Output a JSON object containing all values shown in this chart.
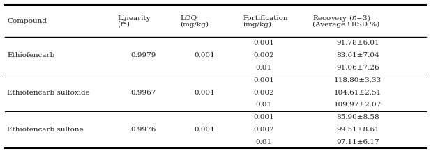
{
  "compounds": [
    {
      "name": "Ethiofencarb",
      "linearity": "0.9979",
      "loq": "0.001",
      "fortifications": [
        "0.001",
        "0.002",
        "0.01"
      ],
      "recoveries": [
        "91.78±6.01",
        "83.61±7.04",
        "91.06±7.26"
      ]
    },
    {
      "name": "Ethiofencarb sulfoxide",
      "linearity": "0.9967",
      "loq": "0.001",
      "fortifications": [
        "0.001",
        "0.002",
        "0.01"
      ],
      "recoveries": [
        "118.80±3.33",
        "104.61±2.51",
        "109.97±2.07"
      ]
    },
    {
      "name": "Ethiofencarb sulfone",
      "linearity": "0.9976",
      "loq": "0.001",
      "fortifications": [
        "0.001",
        "0.002",
        "0.01"
      ],
      "recoveries": [
        "85.90±8.58",
        "99.51±8.61",
        "97.11±6.17"
      ]
    }
  ],
  "background_color": "#ffffff",
  "text_color": "#222222",
  "fontsize": 7.5
}
